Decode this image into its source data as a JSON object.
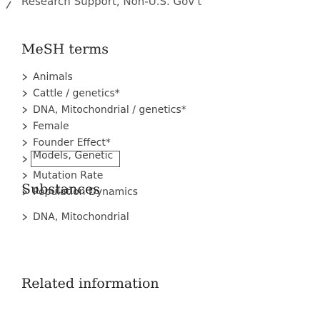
{
  "header": {
    "text": "Research Support, Non-U.S. Gov't"
  },
  "sections": [
    {
      "title": "MeSH terms",
      "items": [
        "Animals",
        "Cattle / genetics*",
        "DNA, Mitochondrial / genetics*",
        "Female",
        "Founder Effect*",
        "Models, Genetic",
        "Mutation Rate",
        "Population Dynamics"
      ]
    },
    {
      "title": "Substances",
      "items": [
        "DNA, Mitochondrial"
      ]
    },
    {
      "title": "Related information",
      "items": []
    }
  ]
}
